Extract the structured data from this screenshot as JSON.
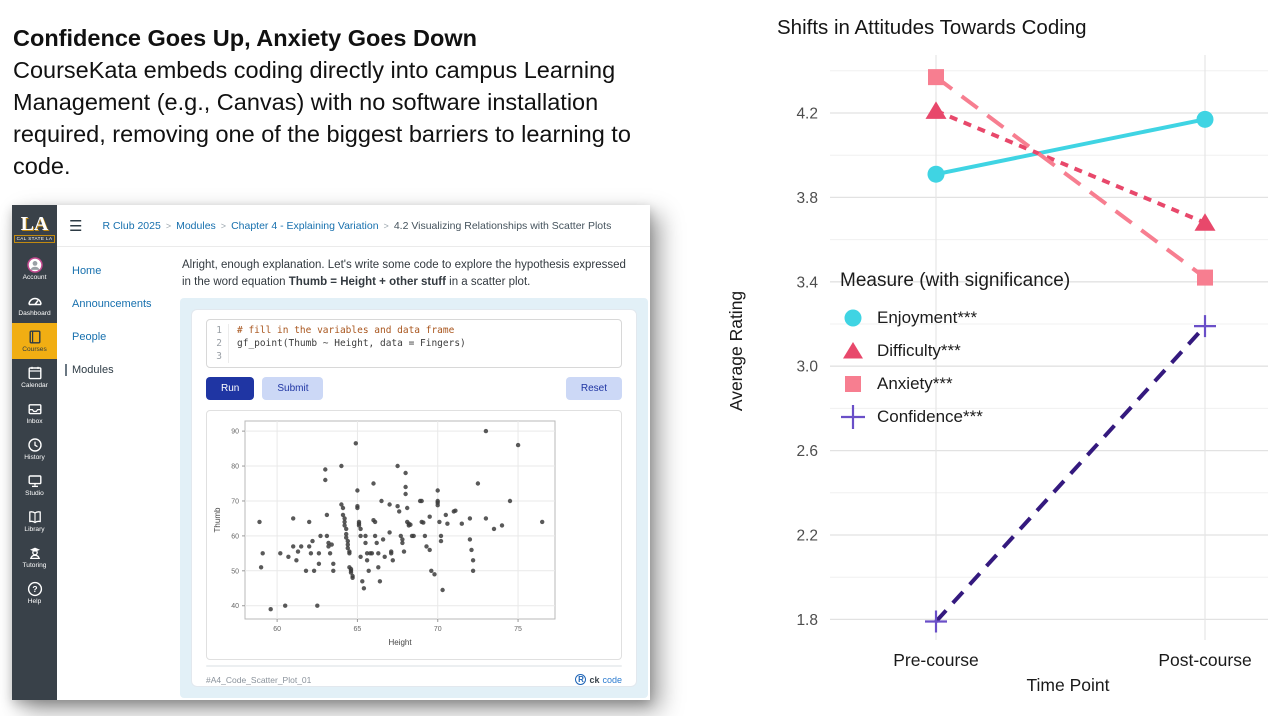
{
  "slide": {
    "title": "Confidence Goes Up, Anxiety Goes Down",
    "body": "CourseKata embeds coding directly into campus Learning Management (e.g., Canvas) with no software installation required, removing one of the biggest barriers to learning to code."
  },
  "canvas": {
    "logo": {
      "monogram": "LA",
      "subtitle": "CAL STATE LA"
    },
    "global_nav": [
      {
        "icon": "account",
        "label": "Account",
        "active": false
      },
      {
        "icon": "dashboard",
        "label": "Dashboard",
        "active": false
      },
      {
        "icon": "courses",
        "label": "Courses",
        "active": true
      },
      {
        "icon": "calendar",
        "label": "Calendar",
        "active": false
      },
      {
        "icon": "inbox",
        "label": "Inbox",
        "active": false
      },
      {
        "icon": "history",
        "label": "History",
        "active": false
      },
      {
        "icon": "studio",
        "label": "Studio",
        "active": false
      },
      {
        "icon": "library",
        "label": "Library",
        "active": false
      },
      {
        "icon": "tutoring",
        "label": "Tutoring",
        "active": false
      },
      {
        "icon": "help",
        "label": "Help",
        "active": false
      }
    ],
    "breadcrumb": [
      "R Club 2025",
      "Modules",
      "Chapter 4 - Explaining Variation",
      "4.2 Visualizing Relationships with Scatter Plots"
    ],
    "course_nav": [
      {
        "label": "Home",
        "active": false
      },
      {
        "label": "Announcements",
        "active": false
      },
      {
        "label": "People",
        "active": false
      },
      {
        "label": "Modules",
        "active": true
      }
    ],
    "intro": {
      "pre": "Alright, enough explanation. Let's write some code to explore the hypothesis expressed in the word equation ",
      "bold": "Thumb = Height + other stuff",
      "post": " in a scatter plot."
    },
    "editor_lines": [
      {
        "num": "1",
        "code": "# fill in the variables and data frame",
        "comment": true
      },
      {
        "num": "2",
        "code": "gf_point(Thumb ~ Height, data = Fingers)",
        "comment": false
      },
      {
        "num": "3",
        "code": "",
        "comment": false
      }
    ],
    "buttons": {
      "run": "Run",
      "submit": "Submit",
      "reset": "Reset"
    },
    "footer": {
      "exercise_id": "#A4_Code_Scatter_Plot_01",
      "r_logo": "R",
      "brand_ck": "ck",
      "brand_code": "code"
    },
    "colors": {
      "link_blue": "#1770AE",
      "nav_bg": "#394149",
      "active_yellow": "#F1AE13",
      "run_button": "#1f35a3",
      "soft_button": "#ccd8f6",
      "panel_blue": "#e2f0f7"
    }
  },
  "chart_data": [
    {
      "type": "line",
      "title": "Shifts in Attitudes Towards Coding",
      "xlabel": "Time Point",
      "ylabel": "Average Rating",
      "categories": [
        "Pre-course",
        "Post-course"
      ],
      "yticks": [
        1.8,
        2.2,
        2.6,
        3.0,
        3.4,
        3.8,
        4.2
      ],
      "ylim": [
        1.65,
        4.5
      ],
      "grid": true,
      "legend_title": "Measure (with significance)",
      "legend_position": "inside-left",
      "series": [
        {
          "name": "Enjoyment***",
          "marker": "circle",
          "dash": "solid",
          "color": "#3FD4E3",
          "values": [
            3.91,
            4.17
          ]
        },
        {
          "name": "Difficulty***",
          "marker": "triangle",
          "dash": "dotted",
          "color": "#E8486B",
          "values": [
            4.21,
            3.68
          ]
        },
        {
          "name": "Anxiety***",
          "marker": "square",
          "dash": "longdash",
          "color": "#F77E90",
          "values": [
            4.37,
            3.42
          ]
        },
        {
          "name": "Confidence***",
          "marker": "plus",
          "dash": "dash",
          "color": "#34197E",
          "marker_color": "#6A4FC8",
          "values": [
            1.79,
            3.19
          ]
        }
      ]
    },
    {
      "type": "scatter",
      "title": "",
      "xlabel": "Height",
      "ylabel": "Thumb",
      "xticks": [
        60,
        65,
        70,
        75
      ],
      "yticks": [
        40,
        50,
        60,
        70,
        80,
        90
      ],
      "xlim": [
        58,
        77.3
      ],
      "ylim": [
        36.2,
        92.9
      ],
      "grid": true,
      "point_color": "#3c3c3c",
      "points": [
        [
          58.9,
          64
        ],
        [
          59.1,
          55
        ],
        [
          59.0,
          51
        ],
        [
          59.6,
          39
        ],
        [
          60.2,
          55
        ],
        [
          60.5,
          40
        ],
        [
          60.7,
          54
        ],
        [
          61.0,
          65
        ],
        [
          61.0,
          57
        ],
        [
          61.2,
          53
        ],
        [
          61.3,
          55.5
        ],
        [
          61.5,
          57
        ],
        [
          61.8,
          50
        ],
        [
          62.0,
          64
        ],
        [
          62.0,
          57
        ],
        [
          62.1,
          55
        ],
        [
          62.2,
          58.5
        ],
        [
          62.3,
          50
        ],
        [
          62.5,
          40
        ],
        [
          62.6,
          55
        ],
        [
          62.6,
          52
        ],
        [
          62.7,
          60
        ],
        [
          63.0,
          79
        ],
        [
          63.0,
          76
        ],
        [
          63.1,
          66
        ],
        [
          63.1,
          60
        ],
        [
          63.2,
          58
        ],
        [
          63.2,
          57
        ],
        [
          63.3,
          55
        ],
        [
          63.4,
          57.5
        ],
        [
          63.5,
          50
        ],
        [
          63.5,
          52
        ],
        [
          64.0,
          80
        ],
        [
          64.0,
          69
        ],
        [
          64.1,
          68
        ],
        [
          64.1,
          66
        ],
        [
          64.2,
          65
        ],
        [
          64.2,
          64
        ],
        [
          64.2,
          63
        ],
        [
          64.3,
          62
        ],
        [
          64.3,
          60.5
        ],
        [
          64.3,
          59.5
        ],
        [
          64.4,
          58.5
        ],
        [
          64.4,
          57.5
        ],
        [
          64.4,
          56.5
        ],
        [
          64.5,
          55.5
        ],
        [
          64.5,
          55
        ],
        [
          64.5,
          51
        ],
        [
          64.6,
          50.5
        ],
        [
          64.6,
          50
        ],
        [
          64.6,
          49.5
        ],
        [
          64.7,
          48.5
        ],
        [
          64.7,
          48
        ],
        [
          64.9,
          86.5
        ],
        [
          65.0,
          73
        ],
        [
          65.0,
          68.5
        ],
        [
          65.0,
          68
        ],
        [
          65.1,
          64
        ],
        [
          65.1,
          63.5
        ],
        [
          65.1,
          63
        ],
        [
          65.2,
          62
        ],
        [
          65.2,
          60
        ],
        [
          65.2,
          54
        ],
        [
          65.3,
          47
        ],
        [
          65.4,
          45
        ],
        [
          65.5,
          60
        ],
        [
          65.5,
          58
        ],
        [
          65.6,
          55
        ],
        [
          65.6,
          53
        ],
        [
          65.7,
          50
        ],
        [
          65.8,
          55
        ],
        [
          65.9,
          55
        ],
        [
          66.0,
          75
        ],
        [
          66.0,
          64.5
        ],
        [
          66.1,
          64
        ],
        [
          66.1,
          60
        ],
        [
          66.2,
          58
        ],
        [
          66.3,
          55
        ],
        [
          66.3,
          51
        ],
        [
          66.4,
          47
        ],
        [
          66.5,
          70
        ],
        [
          66.6,
          59
        ],
        [
          66.7,
          54
        ],
        [
          67.0,
          69
        ],
        [
          67.0,
          61
        ],
        [
          67.1,
          55
        ],
        [
          67.1,
          55.5
        ],
        [
          67.2,
          53
        ],
        [
          67.5,
          80
        ],
        [
          67.5,
          68.5
        ],
        [
          67.6,
          67
        ],
        [
          67.7,
          60
        ],
        [
          67.8,
          59
        ],
        [
          67.8,
          58
        ],
        [
          67.9,
          55.5
        ],
        [
          68.0,
          78
        ],
        [
          68.0,
          74
        ],
        [
          68.0,
          72
        ],
        [
          68.1,
          68
        ],
        [
          68.1,
          64
        ],
        [
          68.2,
          63.5
        ],
        [
          68.2,
          63
        ],
        [
          68.3,
          63.2
        ],
        [
          68.4,
          60
        ],
        [
          68.5,
          60
        ],
        [
          68.9,
          70
        ],
        [
          69.0,
          70
        ],
        [
          69.0,
          64
        ],
        [
          69.1,
          63.8
        ],
        [
          69.2,
          60
        ],
        [
          69.3,
          57
        ],
        [
          69.5,
          65.5
        ],
        [
          69.5,
          56
        ],
        [
          69.6,
          50
        ],
        [
          69.8,
          49
        ],
        [
          70.0,
          73
        ],
        [
          70.0,
          70
        ],
        [
          70.0,
          69.5
        ],
        [
          70.0,
          68.8
        ],
        [
          70.1,
          64
        ],
        [
          70.2,
          60
        ],
        [
          70.2,
          58.5
        ],
        [
          70.3,
          44.5
        ],
        [
          70.5,
          66
        ],
        [
          70.6,
          63.5
        ],
        [
          71.0,
          67
        ],
        [
          71.1,
          67.2
        ],
        [
          71.5,
          63.5
        ],
        [
          72.0,
          65
        ],
        [
          72.0,
          59
        ],
        [
          72.1,
          56
        ],
        [
          72.2,
          53
        ],
        [
          72.2,
          50
        ],
        [
          72.5,
          75
        ],
        [
          73.0,
          90
        ],
        [
          73.0,
          65
        ],
        [
          73.5,
          62
        ],
        [
          74.0,
          63
        ],
        [
          74.5,
          70
        ],
        [
          75.0,
          86
        ],
        [
          76.5,
          64
        ]
      ]
    }
  ]
}
